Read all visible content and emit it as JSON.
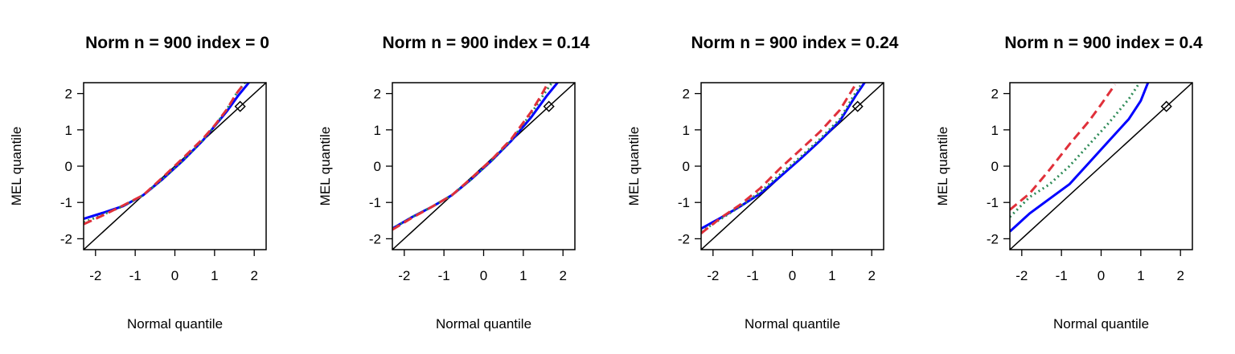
{
  "chart_data": [
    {
      "type": "line",
      "title": "Norm n = 900 index = 0",
      "xlabel": "Normal quantile",
      "ylabel": "MEL quantile",
      "xlim": [
        -2.3,
        2.3
      ],
      "ylim": [
        -2.3,
        2.3
      ],
      "xticks": [
        "-2",
        "-1",
        "0",
        "1",
        "2"
      ],
      "yticks": [
        "-2",
        "-1",
        "0",
        "1",
        "2"
      ],
      "grid": false,
      "reference_line": {
        "x": [
          -2.3,
          2.3
        ],
        "y": [
          -2.3,
          2.3
        ],
        "color": "#000000"
      },
      "marker": {
        "shape": "diamond",
        "x": 1.645,
        "y": 1.645
      },
      "series": [
        {
          "color": "#0000ff",
          "style": "solid",
          "x": [
            -2.3,
            -1.8,
            -1.3,
            -0.8,
            -0.3,
            0.2,
            0.7,
            1.0,
            1.3,
            1.6,
            1.9
          ],
          "y": [
            -1.45,
            -1.28,
            -1.1,
            -0.8,
            -0.35,
            0.15,
            0.7,
            1.1,
            1.5,
            1.95,
            2.35
          ]
        },
        {
          "color": "#2e8b57",
          "style": "dotted",
          "x": [
            -2.3,
            -1.8,
            -1.3,
            -0.8,
            -0.3,
            0.2,
            0.7,
            1.0,
            1.3,
            1.55,
            1.8
          ],
          "y": [
            -1.55,
            -1.33,
            -1.1,
            -0.8,
            -0.35,
            0.15,
            0.7,
            1.1,
            1.55,
            2.0,
            2.35
          ]
        },
        {
          "color": "#e0303a",
          "style": "dashed",
          "x": [
            -2.3,
            -1.8,
            -1.3,
            -0.8,
            -0.3,
            0.2,
            0.7,
            1.0,
            1.3,
            1.55,
            1.8
          ],
          "y": [
            -1.6,
            -1.35,
            -1.08,
            -0.8,
            -0.3,
            0.22,
            0.75,
            1.12,
            1.55,
            2.0,
            2.35
          ]
        }
      ]
    },
    {
      "type": "line",
      "title": "Norm n = 900 index = 0.14",
      "xlabel": "Normal quantile",
      "ylabel": "MEL quantile",
      "xlim": [
        -2.3,
        2.3
      ],
      "ylim": [
        -2.3,
        2.3
      ],
      "xticks": [
        "-2",
        "-1",
        "0",
        "1",
        "2"
      ],
      "yticks": [
        "-2",
        "-1",
        "0",
        "1",
        "2"
      ],
      "grid": false,
      "reference_line": {
        "x": [
          -2.3,
          2.3
        ],
        "y": [
          -2.3,
          2.3
        ],
        "color": "#000000"
      },
      "marker": {
        "shape": "diamond",
        "x": 1.645,
        "y": 1.645
      },
      "series": [
        {
          "color": "#0000ff",
          "style": "solid",
          "x": [
            -2.3,
            -1.8,
            -1.3,
            -0.8,
            -0.3,
            0.2,
            0.7,
            1.2,
            1.6,
            1.9
          ],
          "y": [
            -1.72,
            -1.4,
            -1.12,
            -0.8,
            -0.35,
            0.15,
            0.7,
            1.35,
            1.95,
            2.35
          ]
        },
        {
          "color": "#2e8b57",
          "style": "dotted",
          "x": [
            -2.3,
            -1.8,
            -1.3,
            -0.8,
            -0.3,
            0.2,
            0.7,
            1.2,
            1.5,
            1.75
          ],
          "y": [
            -1.72,
            -1.4,
            -1.12,
            -0.8,
            -0.35,
            0.15,
            0.72,
            1.45,
            1.95,
            2.35
          ]
        },
        {
          "color": "#e0303a",
          "style": "dashed",
          "x": [
            -2.3,
            -1.8,
            -1.3,
            -0.8,
            -0.3,
            0.2,
            0.7,
            1.2,
            1.45,
            1.65
          ],
          "y": [
            -1.75,
            -1.42,
            -1.12,
            -0.8,
            -0.32,
            0.18,
            0.75,
            1.5,
            1.95,
            2.35
          ]
        }
      ]
    },
    {
      "type": "line",
      "title": "Norm n = 900 index = 0.24",
      "xlabel": "Normal quantile",
      "ylabel": "MEL quantile",
      "xlim": [
        -2.3,
        2.3
      ],
      "ylim": [
        -2.3,
        2.3
      ],
      "xticks": [
        "-2",
        "-1",
        "0",
        "1",
        "2"
      ],
      "yticks": [
        "-2",
        "-1",
        "0",
        "1",
        "2"
      ],
      "grid": false,
      "reference_line": {
        "x": [
          -2.3,
          2.3
        ],
        "y": [
          -2.3,
          2.3
        ],
        "color": "#000000"
      },
      "marker": {
        "shape": "diamond",
        "x": 1.645,
        "y": 1.645
      },
      "series": [
        {
          "color": "#0000ff",
          "style": "solid",
          "x": [
            -2.3,
            -1.8,
            -1.3,
            -0.8,
            -0.3,
            0.2,
            0.7,
            1.2,
            1.6,
            1.85
          ],
          "y": [
            -1.72,
            -1.42,
            -1.1,
            -0.75,
            -0.28,
            0.2,
            0.7,
            1.25,
            1.95,
            2.35
          ]
        },
        {
          "color": "#2e8b57",
          "style": "dotted",
          "x": [
            -2.3,
            -1.8,
            -1.3,
            -0.8,
            -0.3,
            0.2,
            0.7,
            1.2,
            1.55,
            1.8
          ],
          "y": [
            -1.8,
            -1.45,
            -1.1,
            -0.7,
            -0.22,
            0.25,
            0.75,
            1.3,
            1.95,
            2.35
          ]
        },
        {
          "color": "#e0303a",
          "style": "dashed",
          "x": [
            -2.3,
            -1.8,
            -1.3,
            -0.8,
            -0.3,
            0.2,
            0.7,
            1.2,
            1.45,
            1.65
          ],
          "y": [
            -1.85,
            -1.42,
            -1.05,
            -0.6,
            -0.05,
            0.45,
            0.95,
            1.55,
            2.0,
            2.35
          ]
        }
      ]
    },
    {
      "type": "line",
      "title": "Norm n = 900 index = 0.4",
      "xlabel": "Normal quantile",
      "ylabel": "MEL quantile",
      "xlim": [
        -2.3,
        2.3
      ],
      "ylim": [
        -2.3,
        2.3
      ],
      "xticks": [
        "-2",
        "-1",
        "0",
        "1",
        "2"
      ],
      "yticks": [
        "-2",
        "-1",
        "0",
        "1",
        "2"
      ],
      "grid": false,
      "reference_line": {
        "x": [
          -2.3,
          2.3
        ],
        "y": [
          -2.3,
          2.3
        ],
        "color": "#000000"
      },
      "marker": {
        "shape": "diamond",
        "x": 1.645,
        "y": 1.645
      },
      "series": [
        {
          "color": "#0000ff",
          "style": "solid",
          "x": [
            -2.3,
            -1.8,
            -1.3,
            -0.8,
            -0.3,
            0.2,
            0.7,
            1.0,
            1.2
          ],
          "y": [
            -1.8,
            -1.3,
            -0.9,
            -0.5,
            0.1,
            0.7,
            1.3,
            1.8,
            2.35
          ]
        },
        {
          "color": "#2e8b57",
          "style": "dotted",
          "x": [
            -2.3,
            -1.8,
            -1.3,
            -0.8,
            -0.3,
            0.2,
            0.7,
            1.0
          ],
          "y": [
            -1.4,
            -0.85,
            -0.5,
            0.0,
            0.6,
            1.2,
            1.85,
            2.35
          ]
        },
        {
          "color": "#e0303a",
          "style": "dashed",
          "x": [
            -2.3,
            -1.8,
            -1.3,
            -0.8,
            -0.3,
            0.0,
            0.35
          ],
          "y": [
            -1.2,
            -0.75,
            -0.1,
            0.6,
            1.25,
            1.7,
            2.25
          ]
        }
      ]
    }
  ]
}
